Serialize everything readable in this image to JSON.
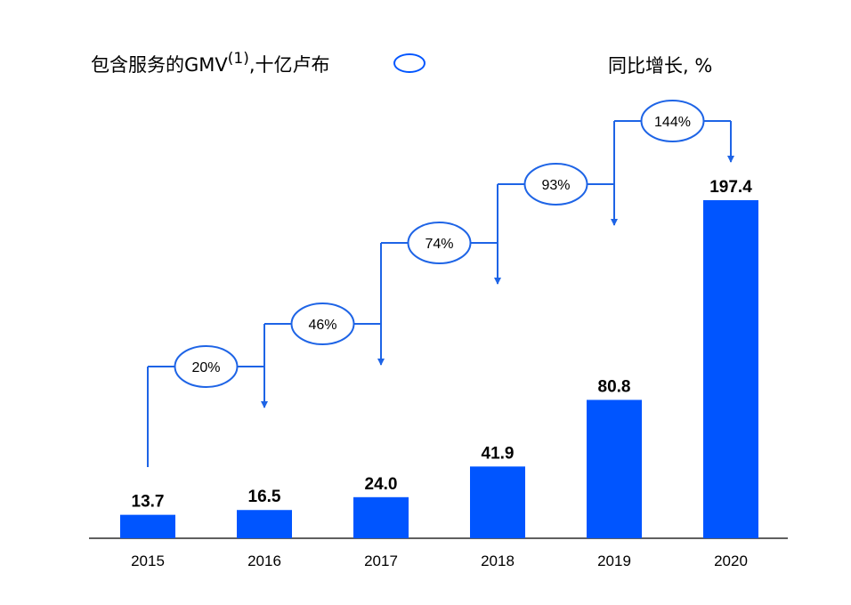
{
  "legend": {
    "left_prefix": "包含服务的GMV",
    "left_sup": "(1)",
    "left_suffix": ",十亿卢布",
    "right": "同比增长, %"
  },
  "colors": {
    "bar": "#0055ff",
    "line": "#1e64e6",
    "axis": "#000000"
  },
  "chart_data": {
    "type": "bar",
    "categories": [
      "2015",
      "2016",
      "2017",
      "2018",
      "2019",
      "2020"
    ],
    "values": [
      13.7,
      16.5,
      24.0,
      41.9,
      80.8,
      197.4
    ],
    "value_labels": [
      "13.7",
      "16.5",
      "24.0",
      "41.9",
      "80.8",
      "197.4"
    ],
    "growth": [
      "20%",
      "46%",
      "74%",
      "93%",
      "144%"
    ],
    "ylim": [
      0,
      200
    ]
  }
}
